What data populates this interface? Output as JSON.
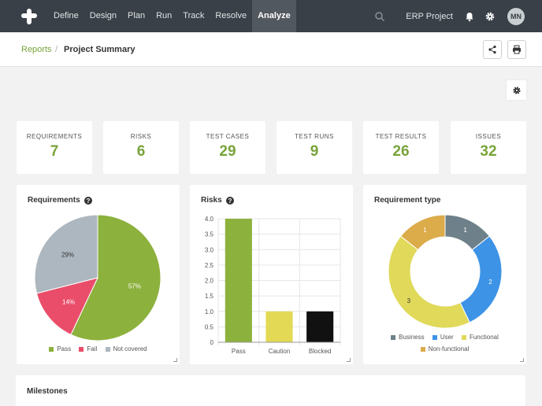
{
  "nav": {
    "items": [
      "Define",
      "Design",
      "Plan",
      "Run",
      "Track",
      "Resolve",
      "Analyze"
    ],
    "active": "Analyze",
    "project": "ERP Project",
    "user_initials": "MN"
  },
  "breadcrumb": {
    "parent": "Reports",
    "separator": "/",
    "current": "Project Summary"
  },
  "stats": [
    {
      "label": "REQUIREMENTS",
      "value": "7"
    },
    {
      "label": "RISKS",
      "value": "6"
    },
    {
      "label": "TEST CASES",
      "value": "29"
    },
    {
      "label": "TEST RUNS",
      "value": "9"
    },
    {
      "label": "TEST RESULTS",
      "value": "26"
    },
    {
      "label": "ISSUES",
      "value": "32"
    }
  ],
  "cards": {
    "requirements_title": "Requirements",
    "risks_title": "Risks",
    "reqtype_title": "Requirement type",
    "milestones_title": "Milestones"
  },
  "colors": {
    "accent": "#78a33a",
    "pass": "#8db13d",
    "fail": "#ea4d6a",
    "not_covered": "#adb7bf",
    "caution": "#e3d954",
    "blocked": "#111111",
    "business": "#6e8089",
    "user": "#3d93e6",
    "functional": "#e0d95a",
    "non_functional": "#dcab4a"
  },
  "chart_data": [
    {
      "type": "pie",
      "title": "Requirements",
      "labels": [
        "Pass",
        "Fail",
        "Not covered"
      ],
      "values": [
        57,
        14,
        29
      ],
      "value_labels": [
        "57%",
        "14%",
        "29%"
      ],
      "colors": [
        "#8db13d",
        "#ea4d6a",
        "#adb7bf"
      ],
      "legend": "bottom"
    },
    {
      "type": "bar",
      "title": "Risks",
      "categories": [
        "Pass",
        "Caution",
        "Blocked"
      ],
      "values": [
        4,
        1,
        1
      ],
      "colors": [
        "#8db13d",
        "#e3d954",
        "#111111"
      ],
      "ylim": [
        0,
        4
      ],
      "yticks": [
        "0",
        "0.5",
        "1.0",
        "1.5",
        "2.0",
        "2.5",
        "3.0",
        "3.5",
        "4.0"
      ],
      "grid": true
    },
    {
      "type": "pie",
      "subtype": "doughnut",
      "title": "Requirement type",
      "labels": [
        "Business",
        "User",
        "Functional",
        "Non-functional"
      ],
      "values": [
        1,
        2,
        3,
        1
      ],
      "value_labels": [
        "1",
        "2",
        "3",
        "1"
      ],
      "colors": [
        "#6e8089",
        "#3d93e6",
        "#e0d95a",
        "#dcab4a"
      ],
      "legend": "bottom"
    }
  ]
}
